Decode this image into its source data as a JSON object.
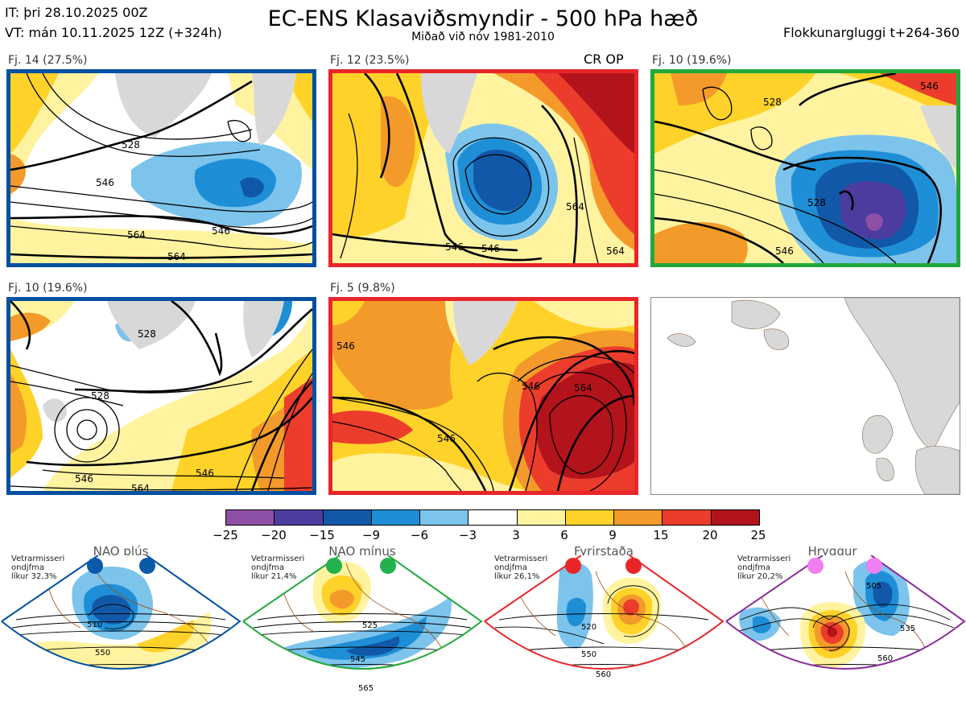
{
  "header": {
    "issue_time": "IT: þri 28.10.2025 00Z",
    "valid_time": "VT: mán 10.11.2025 12Z  (+324h)",
    "title": "EC-ENS Klasaviðsmyndir - 500 hPa hæð",
    "subtitle": "Miðað við nóv 1981-2010",
    "window": "Flokkunargluggi t+264-360",
    "cr_op": "CR OP"
  },
  "clusters": [
    {
      "label": "Fj. 14 (27.5%)",
      "frame_color": "#0050a0",
      "contours": [
        "528",
        "546",
        "564",
        "546",
        "564"
      ]
    },
    {
      "label": "Fj. 12 (23.5%)",
      "frame_color": "#e8262a",
      "contours": [
        "546",
        "564",
        "546",
        "564"
      ]
    },
    {
      "label": "Fj. 10 (19.6%)",
      "frame_color": "#22a83a",
      "contours": [
        "528",
        "546",
        "528",
        "546"
      ]
    },
    {
      "label": "Fj. 10 (19.6%)",
      "frame_color": "#0050a0",
      "contours": [
        "528",
        "546",
        "528",
        "546",
        "564"
      ]
    },
    {
      "label": "Fj. 5 (9.8%)",
      "frame_color": "#e8262a",
      "contours": [
        "546",
        "546",
        "564",
        "546"
      ]
    }
  ],
  "colorbar": {
    "ticks": [
      "−25",
      "−20",
      "−15",
      "−9",
      "−6",
      "−3",
      "3",
      "6",
      "9",
      "15",
      "20",
      "25"
    ],
    "colors": [
      "#8e4fa6",
      "#4c3ca0",
      "#1258a8",
      "#1e8fd6",
      "#7cc4ec",
      "#ffffff",
      "#fff3a0",
      "#ffd22a",
      "#f39a2a",
      "#ec3c2c",
      "#b3131b"
    ]
  },
  "regimes": [
    {
      "name": "NAO plús",
      "info": [
        "Vetrarmisseri",
        "ondjfma",
        "líkur 32,3%"
      ],
      "frame_color": "#0050a0",
      "dot_color": "#0a5aa8",
      "contours": [
        "510",
        "550"
      ]
    },
    {
      "name": "NAO mínus",
      "info": [
        "Vetrarmisseri",
        "ondjfma",
        "líkur 21,4%"
      ],
      "frame_color": "#22a83a",
      "dot_color": "#22b14c",
      "contours": [
        "525",
        "545",
        "565"
      ]
    },
    {
      "name": "Fyrirstaða",
      "info": [
        "Vetrarmisseri",
        "ondjfma",
        "líkur 26,1%"
      ],
      "frame_color": "#e8262a",
      "dot_color": "#e8262a",
      "contours": [
        "520",
        "550",
        "560"
      ]
    },
    {
      "name": "Hryggur",
      "info": [
        "Vetrarmisseri",
        "ondjfma",
        "líkur 20,2%"
      ],
      "frame_color": "#8a2a9a",
      "dot_color": "#f07ef0",
      "contours": [
        "505",
        "535",
        "560"
      ]
    }
  ]
}
